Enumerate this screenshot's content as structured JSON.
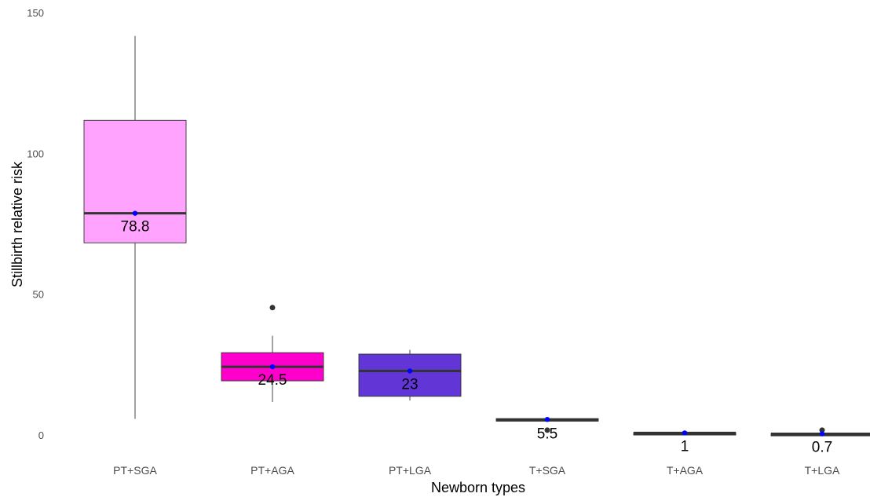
{
  "chart_data": {
    "type": "boxplot",
    "title": "",
    "xlabel": "Newborn types",
    "ylabel": "Stillbirth relative risk",
    "ylim": [
      0,
      150
    ],
    "yticks": [
      0,
      50,
      100,
      150
    ],
    "grid": false,
    "legend": "none",
    "categories": [
      "PT+SGA",
      "PT+AGA",
      "PT+LGA",
      "T+SGA",
      "T+AGA",
      "T+LGA"
    ],
    "boxes": [
      {
        "category": "PT+SGA",
        "whisker_low": 6,
        "q1": 68.5,
        "median": 79,
        "q3": 112,
        "whisker_high": 142,
        "mean": 79,
        "outliers": [],
        "color": "#FFA3FF",
        "label": "78.8"
      },
      {
        "category": "PT+AGA",
        "whisker_low": 12,
        "q1": 19.5,
        "median": 24.5,
        "q3": 29.5,
        "whisker_high": 35.5,
        "mean": 24.5,
        "outliers": [
          45.5
        ],
        "color": "#FF00CC",
        "label": "24.5"
      },
      {
        "category": "PT+LGA",
        "whisker_low": 12.5,
        "q1": 14,
        "median": 23,
        "q3": 29,
        "whisker_high": 30.5,
        "mean": 23,
        "outliers": [],
        "color": "#6236D6",
        "label": "23"
      },
      {
        "category": "T+SGA",
        "whisker_low": 5.2,
        "q1": 5.2,
        "median": 5.5,
        "q3": 6.1,
        "whisker_high": 6.1,
        "mean": 5.8,
        "outliers": [
          2
        ],
        "color": "#333333",
        "label": "5.5"
      },
      {
        "category": "T+AGA",
        "whisker_low": 1,
        "q1": 1,
        "median": 1,
        "q3": 1.1,
        "whisker_high": 1.1,
        "mean": 1,
        "outliers": [],
        "color": "#333333",
        "label": "1"
      },
      {
        "category": "T+LGA",
        "whisker_low": 0.7,
        "q1": 0.7,
        "median": 0.7,
        "q3": 0.8,
        "whisker_high": 0.8,
        "mean": 0.7,
        "outliers": [
          2
        ],
        "color": "#333333",
        "label": "0.7"
      }
    ],
    "colors": {
      "mean_point": "#0000FF",
      "outlier_point": "#333333",
      "median_line": "#333333",
      "whisker": "#333333"
    }
  }
}
